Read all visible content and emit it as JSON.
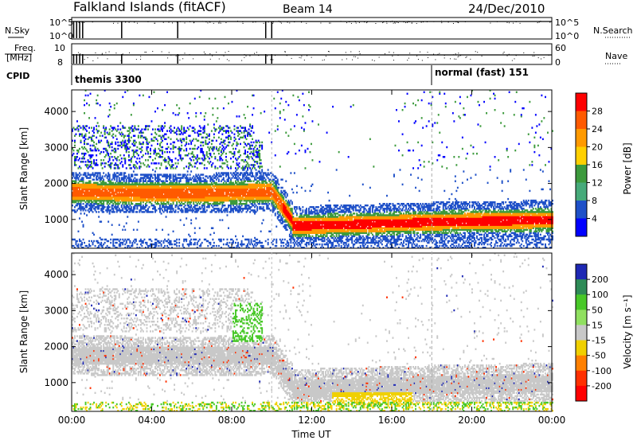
{
  "header": {
    "station": "Falkland Islands (fitACF)",
    "beam": "Beam 14",
    "date": "24/Dec/2010"
  },
  "summary_panels": {
    "nsky_label": "N.Sky",
    "nsearch_label": "N.Search",
    "freq_label_1": "Freq.",
    "freq_label_2": "[MHz]",
    "nave_label": "Nave",
    "cpid_label": "CPID",
    "nsky_ticks": [
      "10^5",
      "10^0"
    ],
    "nsearch_ticks": [
      "10^5",
      "10^0"
    ],
    "freq_ticks": [
      "10",
      "8"
    ],
    "nave_ticks": [
      "60",
      "0"
    ],
    "cpid_segments": [
      {
        "start_hour": 0,
        "label": "themis 3300"
      },
      {
        "start_hour": 18,
        "label": "normal (fast) 151"
      }
    ]
  },
  "chart_data": [
    {
      "type": "heatmap",
      "panel": "power",
      "xlabel": "",
      "ylabel": "Slant Range [km]",
      "xlim_hours": [
        0,
        24
      ],
      "ylim_km": [
        200,
        4600
      ],
      "yticks": [
        "1000",
        "2000",
        "3000",
        "4000"
      ],
      "colorbar_label": "Power [dB]",
      "colorbar_ticks": [
        "28",
        "24",
        "20",
        "16",
        "12",
        "8",
        "4"
      ],
      "colorbar_colors": [
        "#ff0000",
        "#ff5a00",
        "#ff9a00",
        "#ffd000",
        "#3c9a3c",
        "#46aa7a",
        "#1e50c8",
        "#0000ff"
      ]
    },
    {
      "type": "heatmap",
      "panel": "velocity",
      "xlabel": "Time UT",
      "ylabel": "Slant Range [km]",
      "xlim_hours": [
        0,
        24
      ],
      "ylim_km": [
        200,
        4600
      ],
      "xticks": [
        "00:00",
        "04:00",
        "08:00",
        "12:00",
        "16:00",
        "20:00",
        "00:00"
      ],
      "yticks": [
        "1000",
        "2000",
        "3000",
        "4000"
      ],
      "colorbar_label": "Velocity [m s⁻¹]",
      "colorbar_ticks": [
        "200",
        "100",
        "50",
        "15",
        "-15",
        "-50",
        "-100",
        "-200"
      ],
      "colorbar_colors": [
        "#1e28b4",
        "#2e8b57",
        "#48c828",
        "#90e060",
        "#c8c8c8",
        "#f0d000",
        "#ff8000",
        "#ff3000",
        "#ff0000"
      ]
    }
  ]
}
